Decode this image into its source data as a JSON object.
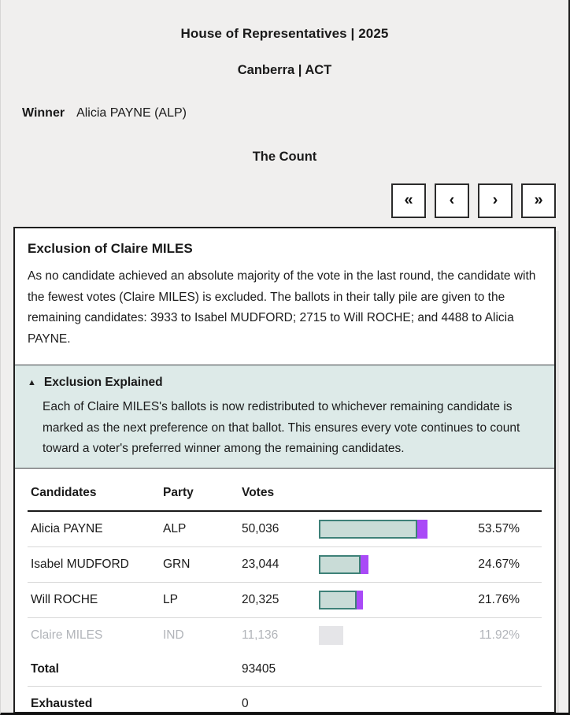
{
  "page": {
    "title": "House of Representatives | 2025",
    "subtitle": "Canberra | ACT",
    "winner_label": "Winner",
    "winner_value": "Alicia PAYNE (ALP)",
    "count_title": "The Count"
  },
  "pagination": {
    "first": "«",
    "prev": "‹",
    "next": "›",
    "last": "»"
  },
  "panel": {
    "heading": "Exclusion of Claire MILES",
    "description": "As no candidate achieved an absolute majority of the vote in the last round, the candidate with the fewest votes (Claire MILES) is excluded. The ballots in their tally pile are given to the remaining candidates: 3933 to Isabel MUDFORD; 2715 to Will ROCHE; and 4488 to Alicia PAYNE.",
    "explainer": {
      "icon": "▲",
      "title": "Exclusion Explained",
      "body": "Each of Claire MILES's ballots is now redistributed to whichever remaining candidate is marked as the next preference on that ballot. This ensures every vote continues to count toward a voter's preferred winner among the remaining candidates."
    }
  },
  "table": {
    "headers": [
      "Candidates",
      "Party",
      "Votes"
    ],
    "rows": [
      {
        "candidate": "Alicia PAYNE",
        "party": "ALP",
        "votes": "50,036",
        "pct_display": "53.57%",
        "pct": 53.57,
        "base_pct": 48.76,
        "gain_pct": 4.81,
        "excluded": false
      },
      {
        "candidate": "Isabel MUDFORD",
        "party": "GRN",
        "votes": "23,044",
        "pct_display": "24.67%",
        "pct": 24.67,
        "base_pct": 20.46,
        "gain_pct": 4.21,
        "excluded": false
      },
      {
        "candidate": "Will ROCHE",
        "party": "LP",
        "votes": "20,325",
        "pct_display": "21.76%",
        "pct": 21.76,
        "base_pct": 18.85,
        "gain_pct": 2.91,
        "excluded": false
      },
      {
        "candidate": "Claire MILES",
        "party": "IND",
        "votes": "11,136",
        "pct_display": "11.92%",
        "pct": 11.92,
        "base_pct": 11.92,
        "gain_pct": 0,
        "excluded": true
      }
    ],
    "total_label": "Total",
    "total_value": "93405",
    "exhausted_label": "Exhausted",
    "exhausted_value": "0"
  },
  "colors": {
    "page_bg": "#f0efee",
    "bar_fill": "#c9dcd7",
    "bar_border": "#3e8178",
    "bar_gain": "#a94af7",
    "bar_excluded": "#e5e5e8",
    "explainer_bg": "#ddeae8"
  }
}
